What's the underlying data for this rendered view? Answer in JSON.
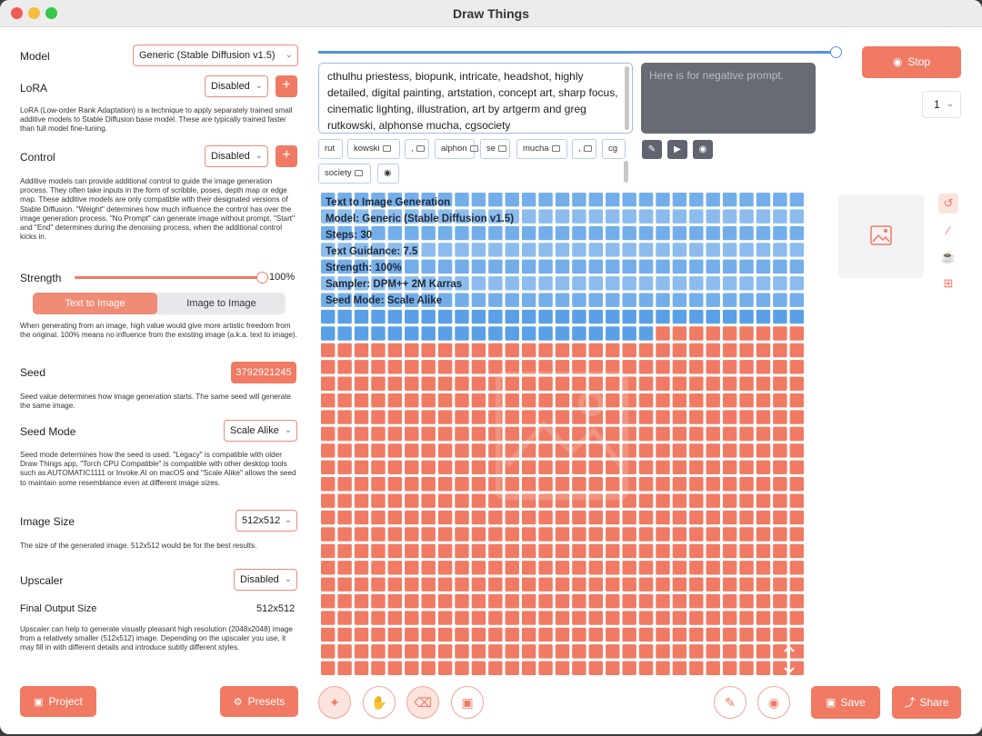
{
  "window": {
    "title": "Draw Things"
  },
  "sidebar": {
    "model": {
      "label": "Model",
      "value": "Generic (Stable Diffusion v1.5)"
    },
    "lora": {
      "label": "LoRA",
      "value": "Disabled",
      "description": "LoRA (Low-order Rank Adaptation) is a technique to apply separately trained small additive models to Stable Diffusion base model. These are typically trained faster than full model fine-tuning."
    },
    "control": {
      "label": "Control",
      "value": "Disabled",
      "description": "Additive models can provide additional control to guide the image generation process. They often take inputs in the form of scribble, poses, depth map or edge map. These additive models are only compatible with their designated versions of Stable Diffusion. \"Weight\" determines how much influence the control has over the image generation process. \"No Prompt\" can generate image without prompt. \"Start\" and \"End\" determines during the denoising process, when the additional control kicks in."
    },
    "strength": {
      "label": "Strength",
      "value": "100%",
      "fraction": 1.0,
      "description": "When generating from an image, high value would give more artistic freedom from the original. 100% means no influence from the existing image (a.k.a. text to image)."
    },
    "mode_tabs": {
      "active": "Text to Image",
      "inactive": "Image to Image"
    },
    "seed": {
      "label": "Seed",
      "value": "3792921245",
      "description": "Seed value determines how image generation starts. The same seed will generate the same image."
    },
    "seed_mode": {
      "label": "Seed Mode",
      "value": "Scale Alike",
      "description": "Seed mode determines how the seed is used. \"Legacy\" is compatible with older Draw Things app, \"Torch CPU Compatible\" is compatible with other desktop tools such as AUTOMATIC1111 or Invoke.AI on macOS and \"Scale Alike\" allows the seed to maintain some resemblance even at different image sizes."
    },
    "image_size": {
      "label": "Image Size",
      "value": "512x512",
      "description": "The size of the generated image. 512x512 would be for the best results."
    },
    "upscaler": {
      "label": "Upscaler",
      "value": "Disabled",
      "description": "Upscaler can help to generate visually pleasant high resolution (2048x2048) image from a relatively smaller (512x512) image. Depending on the upscaler you use, it may fill in with different details and introduce subtly different styles."
    },
    "final_output": {
      "label": "Final Output Size",
      "value": "512x512"
    },
    "project_label": "Project",
    "presets_label": "Presets"
  },
  "prompt": {
    "text": "cthulhu priestess, biopunk, intricate, headshot, highly detailed, digital painting, artstation, concept art, sharp focus, cinematic lighting, illustration, art by artgerm and greg rutkowski, alphonse mucha, cgsociety",
    "negative_placeholder": "Here is for negative prompt.",
    "tokens": [
      "rut",
      "kowski",
      ",",
      "alphon",
      "se",
      "mucha",
      ",",
      "cg",
      "society"
    ]
  },
  "generation": {
    "stop_label": "Stop",
    "batch_count": "1",
    "progress_fraction": 0.99,
    "completed_rows": 8,
    "completed_extra_cells": 20,
    "grid_cells_per_row": 29,
    "info": [
      "Text to Image Generation",
      "Model: Generic (Stable Diffusion v1.5)",
      "Steps: 30",
      "Text Guidance: 7.5",
      "Strength: 100%",
      "Sampler: DPM++ 2M Karras",
      "Seed Mode: Scale Alike"
    ]
  },
  "footer": {
    "save_label": "Save",
    "share_label": "Share"
  },
  "colors": {
    "accent": "#f07a63",
    "progress_blue": "#5a8fd9",
    "done_cell": "#5aa0e6",
    "pending_cell": "#f07a63"
  }
}
